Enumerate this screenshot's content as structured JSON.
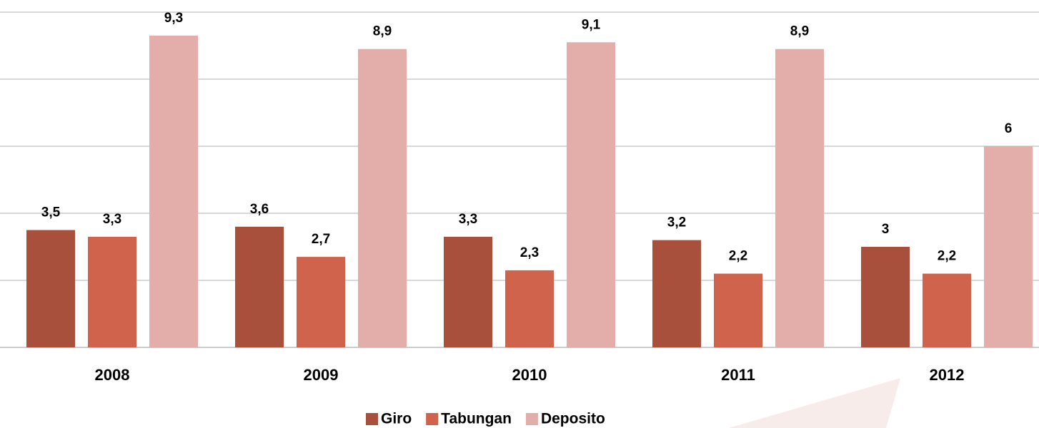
{
  "chart_data": {
    "type": "bar",
    "categories": [
      "2008",
      "2009",
      "2010",
      "2011",
      "2012"
    ],
    "series": [
      {
        "name": "Giro",
        "color": "#a8503c",
        "values": [
          3.5,
          3.6,
          3.3,
          3.2,
          3
        ],
        "value_labels": [
          "3,5",
          "3,6",
          "3,3",
          "3,2",
          "3"
        ]
      },
      {
        "name": "Tabungan",
        "color": "#d0634b",
        "values": [
          3.3,
          2.7,
          2.3,
          2.2,
          2.2
        ],
        "value_labels": [
          "3,3",
          "2,7",
          "2,3",
          "2,2",
          "2,2"
        ]
      },
      {
        "name": "Deposito",
        "color": "#e3aeaa",
        "values": [
          9.3,
          8.9,
          9.1,
          8.9,
          6
        ],
        "value_labels": [
          "9,3",
          "8,9",
          "9,1",
          "8,9",
          "6"
        ]
      }
    ],
    "ylim": [
      0,
      10
    ],
    "yticks": [
      0,
      2,
      4,
      6,
      8,
      10
    ],
    "grid": true,
    "legend": "bottom"
  }
}
